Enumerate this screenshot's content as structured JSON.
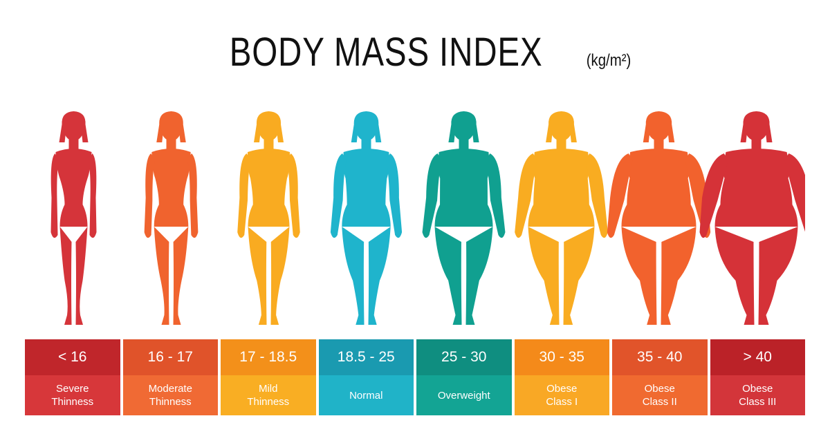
{
  "title": {
    "main": "BODY MASS INDEX",
    "unit": "(kg/m²)"
  },
  "categories": [
    {
      "range": "< 16",
      "label": "Severe\nThinness",
      "dark": "#c0262b",
      "light": "#d7373a",
      "fig": "#d5343a",
      "build": 0.0
    },
    {
      "range": "16 - 17",
      "label": "Moderate\nThinness",
      "dark": "#e0532a",
      "light": "#f06a34",
      "fig": "#f0632e",
      "build": 0.12
    },
    {
      "range": "17 - 18.5",
      "label": "Mild\nThinness",
      "dark": "#f3901a",
      "light": "#f9ae23",
      "fig": "#f9ab21",
      "build": 0.25
    },
    {
      "range": "18.5 - 25",
      "label": "Normal",
      "dark": "#1a9ab0",
      "light": "#20b3c8",
      "fig": "#1fb4cc",
      "build": 0.38
    },
    {
      "range": "25 - 30",
      "label": "Overweight",
      "dark": "#0f8e80",
      "light": "#13a494",
      "fig": "#10a090",
      "build": 0.55
    },
    {
      "range": "30 - 35",
      "label": "Obese\nClass I",
      "dark": "#f48a1a",
      "light": "#f9a825",
      "fig": "#f9ac21",
      "build": 0.7
    },
    {
      "range": "35 - 40",
      "label": "Obese\nClass II",
      "dark": "#e1542a",
      "light": "#f06a30",
      "fig": "#f2622d",
      "build": 0.85
    },
    {
      "range": "> 40",
      "label": "Obese\nClass III",
      "dark": "#bb2228",
      "light": "#d3353a",
      "fig": "#d53238",
      "build": 1.0
    }
  ]
}
